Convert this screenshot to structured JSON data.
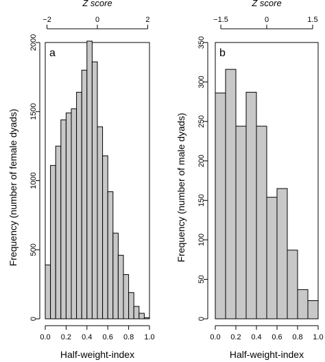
{
  "chart_data": [
    {
      "type": "bar",
      "panel_label": "a",
      "xlabel": "Half-weight-index",
      "ylabel": "Frequency (number of female dyads)",
      "top_axis_label": "Z score",
      "bin_width": 0.05,
      "bin_starts": [
        0.0,
        0.05,
        0.1,
        0.15,
        0.2,
        0.25,
        0.3,
        0.35,
        0.4,
        0.45,
        0.5,
        0.55,
        0.6,
        0.65,
        0.7,
        0.75,
        0.8,
        0.85,
        0.9,
        0.95
      ],
      "values": [
        390,
        1110,
        1250,
        1440,
        1490,
        1520,
        1640,
        1800,
        2010,
        1860,
        1390,
        1180,
        920,
        620,
        460,
        320,
        190,
        90,
        40,
        8
      ],
      "xlim": [
        0.0,
        1.0
      ],
      "ylim": [
        0,
        2000
      ],
      "xticks": [
        "0.0",
        "0.2",
        "0.4",
        "0.6",
        "0.8",
        "1.0"
      ],
      "yticks": [
        "0",
        "500",
        "1000",
        "1500",
        "2000"
      ],
      "top_ticks": [
        {
          "value": -2,
          "label": "−2"
        },
        {
          "value": 0,
          "label": "0"
        },
        {
          "value": 2,
          "label": "2"
        }
      ],
      "bar_color": "#c8c8c8"
    },
    {
      "type": "bar",
      "panel_label": "b",
      "xlabel": "Half-weight-index",
      "ylabel": "Frequency (number of male dyads)",
      "top_axis_label": "Z score",
      "bin_width": 0.1,
      "bin_starts": [
        0.0,
        0.1,
        0.2,
        0.3,
        0.4,
        0.5,
        0.6,
        0.7,
        0.8,
        0.9
      ],
      "values": [
        286,
        316,
        244,
        287,
        244,
        154,
        165,
        87,
        37,
        23
      ],
      "xlim": [
        0.0,
        1.0
      ],
      "ylim": [
        0,
        350
      ],
      "xticks": [
        "0.0",
        "0.2",
        "0.4",
        "0.6",
        "0.8",
        "1.0"
      ],
      "yticks": [
        "0",
        "50",
        "100",
        "150",
        "200",
        "250",
        "300",
        "350"
      ],
      "top_ticks": [
        {
          "value": -1.5,
          "label": "−1.5"
        },
        {
          "value": 0,
          "label": "0"
        },
        {
          "value": 1.5,
          "label": "1.5"
        }
      ],
      "bar_color": "#c8c8c8"
    }
  ]
}
